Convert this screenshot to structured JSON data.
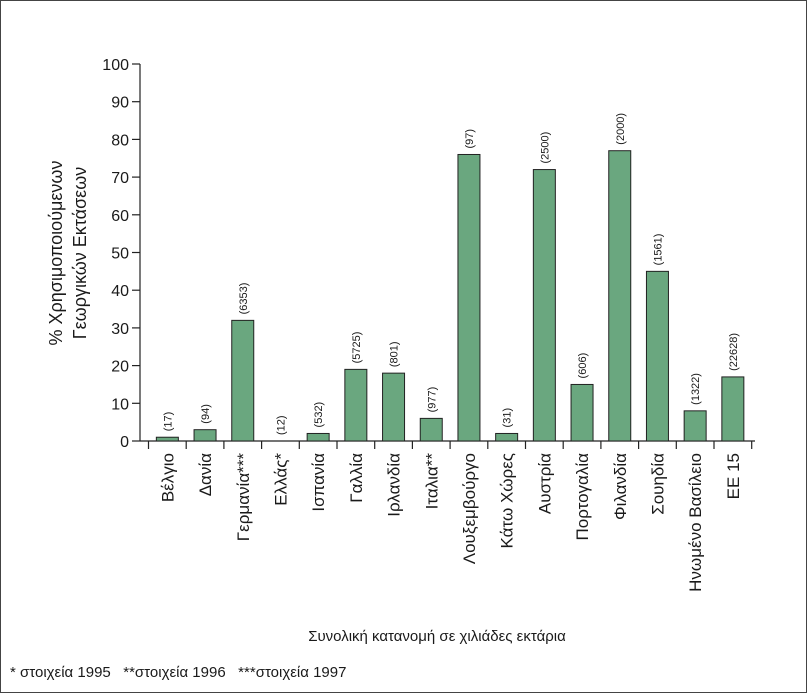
{
  "chart_data": {
    "type": "bar",
    "categories": [
      "Βέλγιο",
      "Δανία",
      "Γερμανία***",
      "Ελλάς*",
      "Ισπανία",
      "Γαλλία",
      "Ιρλανδία",
      "Ιταλια**",
      "Λουξεμβούργο",
      "Κάτω  Χώρες",
      "Αυστρία",
      "Πορτογαλία",
      "Φιλανδία",
      "Σουηδία",
      "Ηνωμένο  Βασίλειο",
      "ΕΕ 15"
    ],
    "values": [
      1,
      3,
      32,
      0,
      2,
      19,
      18,
      6,
      76,
      2,
      72,
      15,
      77,
      45,
      8,
      17
    ],
    "value_labels": [
      "(17)",
      "(94)",
      "(6353)",
      "(12)",
      "(532)",
      "(5725)",
      "(801)",
      "(977)",
      "(97)",
      "(31)",
      "(2500)",
      "(606)",
      "(2000)",
      "(1561)",
      "(1322)",
      "(22628)"
    ],
    "ylabel_line1": "%  Χρησιμοποιούμενων",
    "ylabel_line2": "Γεωργικών  Εκτάσεων",
    "xlabel": "Συνολική κατανομή σε χιλιάδες εκτάρια",
    "yticks": [
      0,
      10,
      20,
      30,
      40,
      50,
      60,
      70,
      80,
      90,
      100
    ],
    "ylim": [
      0,
      100
    ],
    "bar_color": "#6aa77f",
    "grid": false
  },
  "footnote": "* στοιχεία 1995   **στοιχεία 1996   ***στοιχεία 1997"
}
